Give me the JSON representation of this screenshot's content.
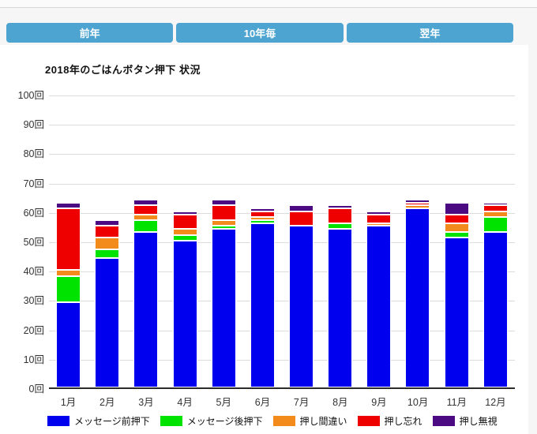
{
  "toolbar": {
    "prev_label": "前年",
    "decade_label": "10年毎",
    "next_label": "翌年"
  },
  "chart_data": {
    "type": "bar",
    "stacked": true,
    "title": "2018年のごはんボタン押下 状況",
    "categories": [
      "1月",
      "2月",
      "3月",
      "4月",
      "5月",
      "6月",
      "7月",
      "8月",
      "9月",
      "10月",
      "11月",
      "12月"
    ],
    "series": [
      {
        "name": "メッセージ前押下",
        "color": "#0000ee",
        "values": [
          29,
          44,
          53,
          50,
          54,
          56,
          55,
          54,
          55,
          61,
          51,
          53
        ]
      },
      {
        "name": "メッセージ後押下",
        "color": "#00e300",
        "values": [
          9,
          3,
          4,
          2,
          1,
          1,
          0,
          2,
          0,
          0,
          2,
          5
        ]
      },
      {
        "name": "押し間違い",
        "color": "#f28a1c",
        "values": [
          2,
          4,
          2,
          2,
          2,
          1,
          0,
          0,
          1,
          1,
          3,
          2
        ]
      },
      {
        "name": "押し忘れ",
        "color": "#ee0000",
        "values": [
          21,
          4,
          3,
          5,
          5,
          2,
          5,
          5,
          3,
          1,
          3,
          2
        ]
      },
      {
        "name": "押し無視",
        "color": "#4b0a82",
        "values": [
          2,
          2,
          2,
          1,
          2,
          1,
          2,
          1,
          1,
          1,
          4,
          1
        ]
      }
    ],
    "y_unit": "回",
    "ylim": [
      0,
      100
    ],
    "y_tick_step": 10,
    "grid": true,
    "legend_position": "bottom"
  }
}
